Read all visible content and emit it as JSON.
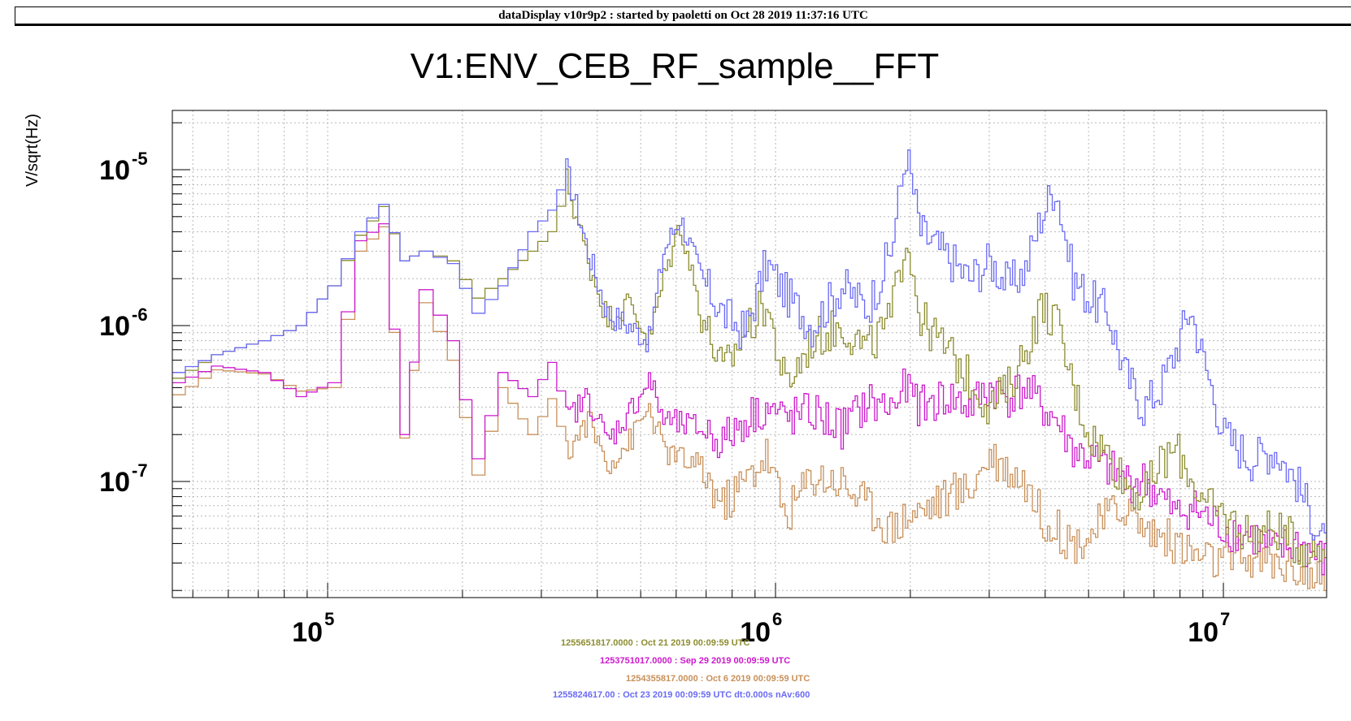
{
  "header": {
    "text": "dataDisplay v10r9p2 : started by paoletti on Oct 28 2019 11:37:16 UTC"
  },
  "chart_data": {
    "type": "line",
    "title": "V1:ENV_CEB_RF_sample__FFT",
    "ylabel": "V/sqrt(Hz)",
    "xlabel": "",
    "x_scale": "log",
    "y_scale": "log",
    "xlim": [
      45000,
      17000000
    ],
    "ylim": [
      1.8e-08,
      2.4e-05
    ],
    "x_ticks": [
      {
        "value": 100000,
        "base": "10",
        "exp": "5"
      },
      {
        "value": 1000000,
        "base": "10",
        "exp": "6"
      },
      {
        "value": 10000000,
        "base": "10",
        "exp": "7"
      }
    ],
    "y_ticks": [
      {
        "value": 1e-05,
        "base": "10",
        "exp": "-5"
      },
      {
        "value": 1e-06,
        "base": "10",
        "exp": "-6"
      },
      {
        "value": 1e-07,
        "base": "10",
        "exp": "-7"
      }
    ],
    "grid": true,
    "colors": {
      "blue": "#6a6af5",
      "olive": "#8c8c30",
      "magenta": "#cc1acc",
      "tan": "#c8905a"
    },
    "series": [
      {
        "color_key": "blue",
        "x": [
          45000,
          55000,
          70000,
          85000,
          100000,
          115000,
          130000,
          145000,
          160000,
          185000,
          210000,
          240000,
          280000,
          310000,
          340000,
          380000,
          420000,
          470000,
          520000,
          560000,
          610000,
          680000,
          760000,
          850000,
          950000,
          1050000,
          1200000,
          1400000,
          1600000,
          1800000,
          1950000,
          2100000,
          2400000,
          2700000,
          3000000,
          3300000,
          3600000,
          3900000,
          4200000,
          4600000,
          5000000,
          5500000,
          6000000,
          6600000,
          7200000,
          7800000,
          8400000,
          9000000,
          10000000,
          11500000,
          13000000,
          14500000,
          17000000
        ],
        "y": [
          5e-07,
          6.5e-07,
          8e-07,
          1e-06,
          1.8e-06,
          4e-06,
          6e-06,
          2.6e-06,
          3e-06,
          2.5e-06,
          1.2e-06,
          1.8e-06,
          4e-06,
          5.5e-06,
          1e-05,
          3e-06,
          1.2e-06,
          1e-06,
          8e-07,
          3e-06,
          5e-06,
          2e-06,
          1.2e-06,
          9e-07,
          2.5e-06,
          1.6e-06,
          1e-06,
          1.8e-06,
          1.3e-06,
          3e-06,
          1.3e-05,
          4e-06,
          2.8e-06,
          2e-06,
          2.6e-06,
          1.8e-06,
          2.3e-06,
          5e-06,
          8e-06,
          2e-06,
          1.5e-06,
          1.2e-06,
          5e-07,
          3e-07,
          4e-07,
          7e-07,
          1.3e-06,
          6e-07,
          2e-07,
          1.4e-07,
          1.6e-07,
          1e-07,
          3.5e-08
        ]
      },
      {
        "color_key": "olive",
        "x": [
          45000,
          55000,
          70000,
          85000,
          100000,
          115000,
          130000,
          145000,
          160000,
          185000,
          210000,
          240000,
          280000,
          310000,
          340000,
          380000,
          420000,
          470000,
          520000,
          560000,
          610000,
          680000,
          760000,
          850000,
          950000,
          1050000,
          1200000,
          1400000,
          1600000,
          1800000,
          1950000,
          2100000,
          2400000,
          2700000,
          3000000,
          3300000,
          3600000,
          3900000,
          4200000,
          4600000,
          5000000,
          5500000,
          6000000,
          6600000,
          7200000,
          7800000,
          8400000,
          9000000,
          10000000,
          11500000,
          13000000,
          14500000,
          17000000
        ],
        "y": [
          4.6e-07,
          6.5e-07,
          8e-07,
          1e-06,
          1.8e-06,
          3.8e-06,
          5.8e-06,
          2.6e-06,
          3e-06,
          2.6e-06,
          1.5e-06,
          2e-06,
          3e-06,
          4e-06,
          8.5e-06,
          2.6e-06,
          1.1e-06,
          1.4e-06,
          8e-07,
          2e-06,
          4.5e-06,
          1.2e-06,
          5e-07,
          9e-07,
          1.4e-06,
          4e-07,
          8e-07,
          1e-06,
          7e-07,
          1.1e-06,
          4e-06,
          1.1e-06,
          7e-07,
          4.5e-07,
          3e-07,
          4e-07,
          7e-07,
          1.3e-06,
          1.1e-06,
          4e-07,
          2e-07,
          1.5e-07,
          1e-07,
          8e-08,
          1.3e-07,
          1.6e-07,
          1.1e-07,
          7e-08,
          6e-08,
          4.5e-08,
          5e-08,
          4e-08,
          3.5e-08
        ]
      },
      {
        "color_key": "magenta",
        "x": [
          45000,
          55000,
          70000,
          85000,
          100000,
          115000,
          130000,
          145000,
          160000,
          185000,
          210000,
          240000,
          280000,
          310000,
          340000,
          380000,
          420000,
          470000,
          520000,
          560000,
          610000,
          680000,
          760000,
          850000,
          950000,
          1050000,
          1200000,
          1400000,
          1600000,
          1800000,
          1950000,
          2100000,
          2400000,
          2700000,
          3000000,
          3300000,
          3600000,
          3900000,
          4200000,
          4600000,
          5000000,
          5500000,
          6000000,
          6600000,
          7200000,
          7800000,
          8400000,
          9000000,
          10000000,
          11500000,
          13000000,
          14500000,
          17000000
        ],
        "y": [
          4.3e-07,
          5.5e-07,
          5e-07,
          3.5e-07,
          4.3e-07,
          3.5e-06,
          4.5e-06,
          2e-07,
          1.7e-06,
          8e-07,
          1.4e-07,
          5e-07,
          3.5e-07,
          5.8e-07,
          2.5e-07,
          3.5e-07,
          1.8e-07,
          2.8e-07,
          4.5e-07,
          2.5e-07,
          2.3e-07,
          2.2e-07,
          1.8e-07,
          2.5e-07,
          3e-07,
          2.5e-07,
          2.8e-07,
          2.2e-07,
          3.2e-07,
          3e-07,
          4e-07,
          3e-07,
          3.5e-07,
          3e-07,
          4e-07,
          3.5e-07,
          4e-07,
          3e-07,
          2.5e-07,
          1.6e-07,
          1.4e-07,
          1.2e-07,
          1e-07,
          1e-07,
          8e-08,
          6e-08,
          7e-08,
          6e-08,
          5e-08,
          4.5e-08,
          3.5e-08,
          4e-08,
          3e-08
        ]
      },
      {
        "color_key": "tan",
        "x": [
          45000,
          55000,
          70000,
          85000,
          100000,
          115000,
          130000,
          145000,
          160000,
          185000,
          210000,
          240000,
          280000,
          310000,
          340000,
          380000,
          420000,
          470000,
          520000,
          560000,
          610000,
          680000,
          760000,
          850000,
          950000,
          1050000,
          1200000,
          1400000,
          1600000,
          1800000,
          1950000,
          2100000,
          2400000,
          2700000,
          3000000,
          3300000,
          3600000,
          3900000,
          4200000,
          4600000,
          5000000,
          5500000,
          6000000,
          6600000,
          7200000,
          7800000,
          8400000,
          9000000,
          10000000,
          11500000,
          13000000,
          14500000,
          17000000
        ],
        "y": [
          3.6e-07,
          5.2e-07,
          4.9e-07,
          3.8e-07,
          4e-07,
          3e-06,
          4.3e-06,
          1.9e-07,
          1.4e-06,
          6e-07,
          1.1e-07,
          4e-07,
          2e-07,
          3.4e-07,
          1.5e-07,
          2.5e-07,
          1.3e-07,
          1.8e-07,
          3e-07,
          1.6e-07,
          1.4e-07,
          1.2e-07,
          7e-08,
          1e-07,
          1.5e-07,
          6e-08,
          1.1e-07,
          1e-07,
          7e-08,
          5e-08,
          6e-08,
          6.5e-08,
          8e-08,
          9e-08,
          1.5e-07,
          1.2e-07,
          1e-07,
          6e-08,
          5e-08,
          4e-08,
          4.5e-08,
          6e-08,
          7e-08,
          5e-08,
          4.5e-08,
          4e-08,
          3.5e-08,
          3.2e-08,
          3e-08,
          3.2e-08,
          3e-08,
          2.8e-08,
          2e-08
        ]
      }
    ],
    "legend": [
      {
        "text": "1255651817.0000 : Oct 21 2019 00:09:59 UTC",
        "color_key": "olive"
      },
      {
        "text": "1253751017.0000 : Sep 29 2019 00:09:59 UTC",
        "color_key": "magenta"
      },
      {
        "text": "1254355817.0000 : Oct  6 2019 00:09:59 UTC",
        "color_key": "tan"
      },
      {
        "text": "1255824617.00 : Oct 23 2019 00:09:59 UTC dt:0.000s nAv:600",
        "color_key": "blue"
      }
    ]
  }
}
